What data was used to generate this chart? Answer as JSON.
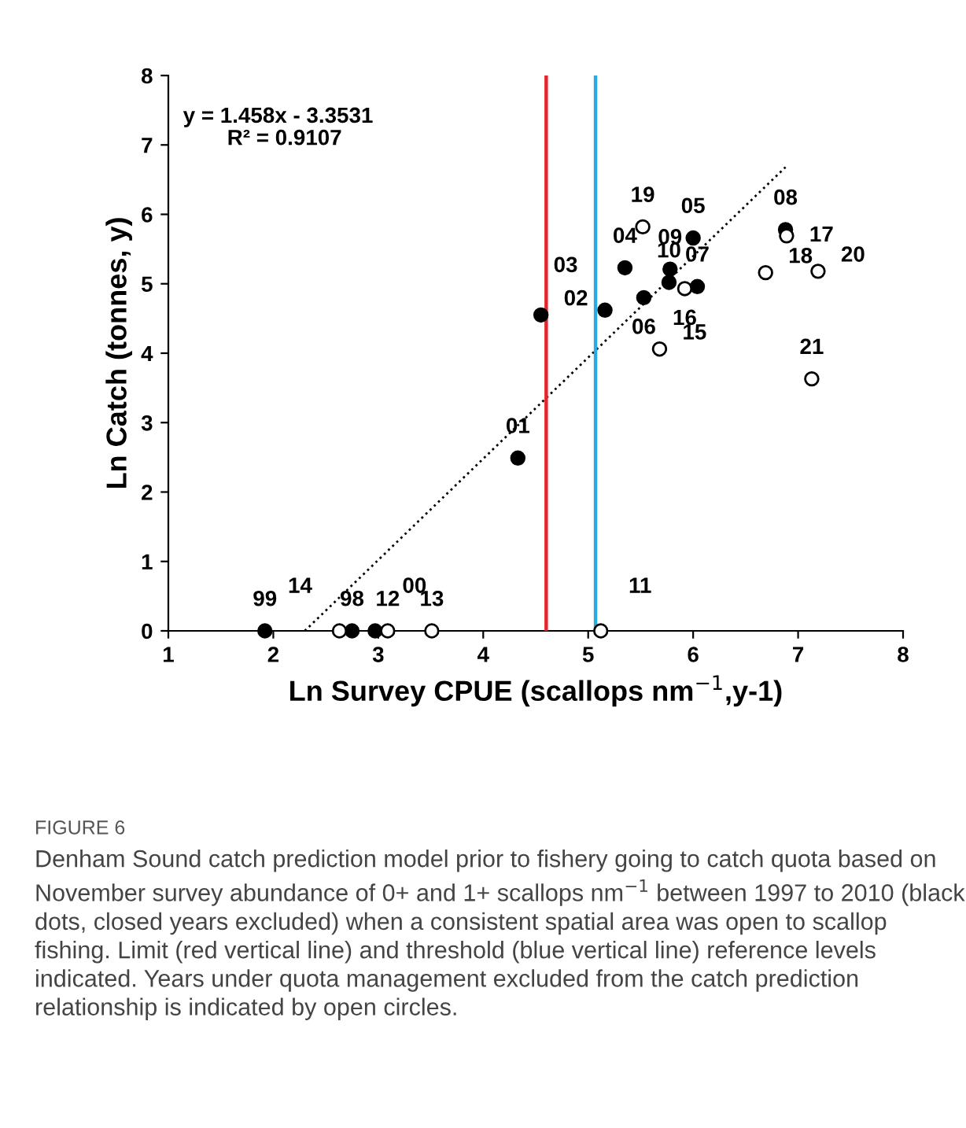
{
  "chart_data": {
    "type": "scatter",
    "xlabel": "Ln Survey CPUE (scallops nm$^{−1}$,y-1)",
    "ylabel": "Ln Catch (tonnes, y)",
    "xlim": [
      1,
      8
    ],
    "ylim": [
      0,
      8
    ],
    "xticks": [
      1,
      2,
      3,
      4,
      5,
      6,
      7,
      8
    ],
    "yticks": [
      0,
      1,
      2,
      3,
      4,
      5,
      6,
      7,
      8
    ],
    "grid": false,
    "marker": "circle",
    "series": [
      {
        "color": "#000000",
        "x": [
          1.92,
          2.75,
          2.97,
          4.33,
          4.55,
          5.16,
          5.35,
          5.78,
          5.77,
          5.53,
          6.04,
          6.0,
          6.88
        ],
        "values": [
          0,
          0,
          0,
          2.49,
          4.55,
          4.62,
          5.23,
          5.21,
          5.02,
          4.8,
          4.96,
          5.66,
          5.78
        ]
      },
      {
        "color": "#ffffff",
        "x": [
          2.63,
          3.09,
          3.51,
          5.12,
          5.52,
          5.68,
          5.92,
          6.69,
          6.89,
          7.19,
          7.13
        ],
        "values": [
          0,
          0,
          0,
          0,
          5.82,
          4.06,
          4.93,
          5.16,
          5.69,
          5.18,
          3.63
        ]
      },
      {
        "type": "line",
        "marker": "none",
        "color": "#000000",
        "line_style": "dotted",
        "x": [
          2.3,
          6.88
        ],
        "values": [
          0,
          6.68
        ]
      }
    ],
    "ref_lines": [
      {
        "axis": "x",
        "value": 4.6,
        "color": "#e8242a"
      },
      {
        "axis": "x",
        "value": 5.07,
        "color": "#29abe2"
      }
    ],
    "annotations": [
      "y = 1.458x - 3.3531",
      "R² = 0.9107",
      "FIGURE 6",
      "Denham Sound catch prediction model prior to fishery going to catch quota based on November survey abundance of 0+ and 1+ scallops nm$^{−1}$ between 1997 to 2010 (black dots, closed years excluded) when a consistent spatial area was open to scallop fishing. Limit (red vertical line) and threshold (blue vertical line) reference levels indicated. Years under quota management excluded from the catch prediction relationship is indicated by open circles.",
      {
        "text": "99",
        "x": 1.92,
        "y": 0
      },
      {
        "text": "98",
        "x": 2.75,
        "y": 0
      },
      {
        "text": "00",
        "x": 2.97,
        "y": 0
      },
      {
        "text": "01",
        "x": 4.33,
        "y": 2.49
      },
      {
        "text": "02",
        "x": 4.55,
        "y": 4.55
      },
      {
        "text": "03",
        "x": 5.16,
        "y": 4.62
      },
      {
        "text": "04",
        "x": 5.35,
        "y": 5.23
      },
      {
        "text": "09",
        "x": 5.78,
        "y": 5.21
      },
      {
        "text": "10",
        "x": 5.77,
        "y": 5.02
      },
      {
        "text": "06",
        "x": 5.53,
        "y": 4.8
      },
      {
        "text": "07",
        "x": 6.04,
        "y": 4.96
      },
      {
        "text": "05",
        "x": 6.0,
        "y": 5.66
      },
      {
        "text": "08",
        "x": 6.88,
        "y": 5.78
      },
      {
        "text": "14",
        "x": 2.63,
        "y": 0
      },
      {
        "text": "12",
        "x": 3.09,
        "y": 0
      },
      {
        "text": "13",
        "x": 3.51,
        "y": 0
      },
      {
        "text": "11",
        "x": 5.12,
        "y": 0
      },
      {
        "text": "19",
        "x": 5.52,
        "y": 5.82
      },
      {
        "text": "15",
        "x": 5.68,
        "y": 4.06
      },
      {
        "text": "16",
        "x": 5.92,
        "y": 4.93
      },
      {
        "text": "18",
        "x": 6.69,
        "y": 5.16
      },
      {
        "text": "17",
        "x": 6.89,
        "y": 5.69
      },
      {
        "text": "20",
        "x": 7.19,
        "y": 5.18
      },
      {
        "text": "21",
        "x": 7.13,
        "y": 3.63
      }
    ]
  }
}
